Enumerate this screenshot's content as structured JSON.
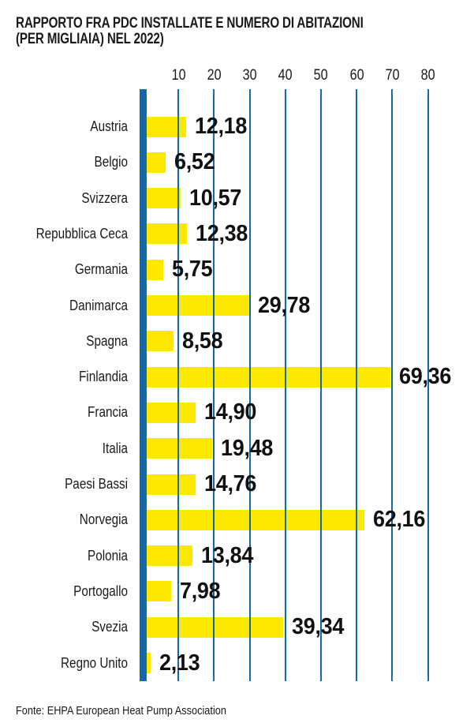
{
  "page": {
    "title_line1": "RAPPORTO FRA PDC INSTALLATE E NUMERO DI ABITAZIONI",
    "title_line2": "(PER MIGLIAIA) NEL 2022)",
    "source": "Fonte: EHPA European Heat Pump Association"
  },
  "chart_data": {
    "type": "bar",
    "orientation": "horizontal",
    "title": "RAPPORTO FRA PDC INSTALLATE E NUMERO DI ABITAZIONI (PER MIGLIAIA) NEL 2022)",
    "source": "Fonte: EHPA European Heat Pump Association",
    "categories": [
      "Austria",
      "Belgio",
      "Svizzera",
      "Repubblica Ceca",
      "Germania",
      "Danimarca",
      "Spagna",
      "Finlandia",
      "Francia",
      "Italia",
      "Paesi Bassi",
      "Norvegia",
      "Polonia",
      "Portogallo",
      "Svezia",
      "Regno Unito"
    ],
    "values": [
      12.18,
      6.52,
      10.57,
      12.38,
      5.75,
      29.78,
      8.58,
      69.36,
      14.9,
      19.48,
      14.76,
      62.16,
      13.84,
      7.98,
      39.34,
      2.13
    ],
    "value_labels": [
      "12,18",
      "6,52",
      "10,57",
      "12,38",
      "5,75",
      "29,78",
      "8,58",
      "69,36",
      "14,90",
      "19,48",
      "14,76",
      "62,16",
      "13,84",
      "7,98",
      "39,34",
      "2,13"
    ],
    "x_ticks": [
      10,
      20,
      30,
      40,
      50,
      60,
      70,
      80
    ],
    "xlim": [
      0,
      90
    ],
    "grid": true,
    "legend": false,
    "colors": {
      "bar": "#FFE800",
      "axis": "#1568A6",
      "grid": "#1568A6",
      "text": "#1A1A1A"
    }
  }
}
